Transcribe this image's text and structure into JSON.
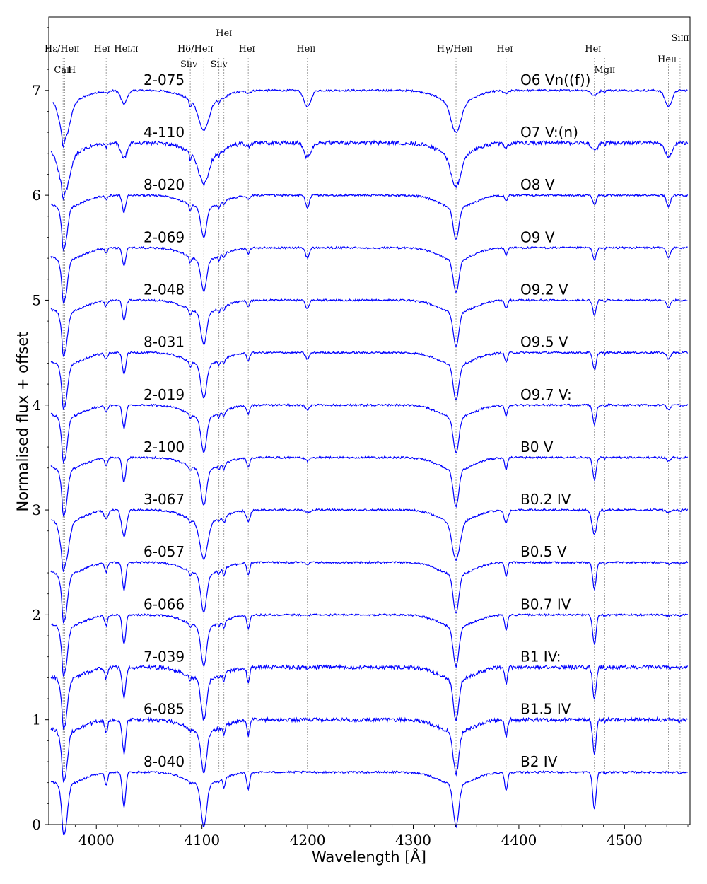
{
  "chart_data": {
    "type": "line",
    "xlabel": "Wavelength [Å]",
    "ylabel": "Normalised flux + offset",
    "xlim": [
      3955,
      4562
    ],
    "ylim": [
      0,
      7.7
    ],
    "x_ticks": [
      4000,
      4100,
      4200,
      4300,
      4400,
      4500
    ],
    "y_ticks": [
      0,
      1,
      2,
      3,
      4,
      5,
      6,
      7
    ],
    "line_color": "#0000ff",
    "grid": false,
    "spectral_lines": [
      {
        "wavelength": 3968.5,
        "label": "Ca",
        "ion": "II"
      },
      {
        "wavelength": 3970.1,
        "label": "H",
        "ion": ""
      },
      {
        "wavelength": 3970.1,
        "label": "Hε/He",
        "ion": "II"
      },
      {
        "wavelength": 4009.3,
        "label": "He",
        "ion": "I"
      },
      {
        "wavelength": 4026.2,
        "label": "He",
        "ion": "I/II"
      },
      {
        "wavelength": 4088.9,
        "label": "Si",
        "ion": "IV"
      },
      {
        "wavelength": 4101.7,
        "label": "Hδ/He",
        "ion": "II"
      },
      {
        "wavelength": 4116.1,
        "label": "Si",
        "ion": "IV"
      },
      {
        "wavelength": 4120.8,
        "label": "He",
        "ion": "I"
      },
      {
        "wavelength": 4143.8,
        "label": "He",
        "ion": "I"
      },
      {
        "wavelength": 4199.8,
        "label": "He",
        "ion": "II"
      },
      {
        "wavelength": 4340.5,
        "label": "Hγ/He",
        "ion": "II"
      },
      {
        "wavelength": 4387.9,
        "label": "He",
        "ion": "I"
      },
      {
        "wavelength": 4471.5,
        "label": "He",
        "ion": "I"
      },
      {
        "wavelength": 4481.2,
        "label": "Mg",
        "ion": "II"
      },
      {
        "wavelength": 4541.6,
        "label": "He",
        "ion": "II"
      },
      {
        "wavelength": 4552.6,
        "label": "Si",
        "ion": "III"
      }
    ],
    "series": [
      {
        "name": "2-075",
        "sptype": "O6 Vn((f))",
        "offset": 7.0,
        "start": 3959
      },
      {
        "name": "4-110",
        "sptype": "O7 V:(n)",
        "offset": 6.5,
        "start": 3957
      },
      {
        "name": "8-020",
        "sptype": "O8 V",
        "offset": 6.0,
        "start": 3957
      },
      {
        "name": "2-069",
        "sptype": "O9 V",
        "offset": 5.5,
        "start": 3957
      },
      {
        "name": "2-048",
        "sptype": "O9.2 V",
        "offset": 5.0,
        "start": 3957
      },
      {
        "name": "8-031",
        "sptype": "O9.5 V",
        "offset": 4.5,
        "start": 3957
      },
      {
        "name": "2-019",
        "sptype": "O9.7 V:",
        "offset": 4.0,
        "start": 3957
      },
      {
        "name": "2-100",
        "sptype": "B0 V",
        "offset": 3.5,
        "start": 3957
      },
      {
        "name": "3-067",
        "sptype": "B0.2 IV",
        "offset": 3.0,
        "start": 3957
      },
      {
        "name": "6-057",
        "sptype": "B0.5 V",
        "offset": 2.5,
        "start": 3957
      },
      {
        "name": "6-066",
        "sptype": "B0.7 IV",
        "offset": 2.0,
        "start": 3957
      },
      {
        "name": "7-039",
        "sptype": "B1 IV:",
        "offset": 1.5,
        "start": 3957
      },
      {
        "name": "6-085",
        "sptype": "B1.5 IV",
        "offset": 1.0,
        "start": 3957
      },
      {
        "name": "8-040",
        "sptype": "B2 IV",
        "offset": 0.5,
        "start": 3957
      }
    ]
  }
}
